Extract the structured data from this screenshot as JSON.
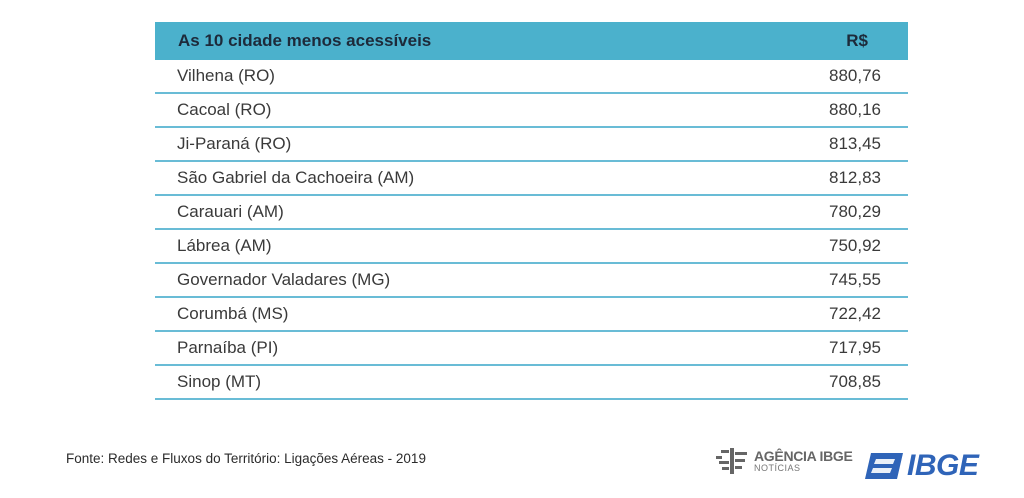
{
  "table": {
    "header": {
      "city": "As 10 cidade menos acessíveis",
      "value": "R$"
    },
    "rows": [
      {
        "city": "Vilhena (RO)",
        "value": "880,76"
      },
      {
        "city": "Cacoal (RO)",
        "value": "880,16"
      },
      {
        "city": "Ji-Paraná (RO)",
        "value": "813,45"
      },
      {
        "city": "São Gabriel da Cachoeira (AM)",
        "value": "812,83"
      },
      {
        "city": "Carauari (AM)",
        "value": "780,29"
      },
      {
        "city": "Lábrea (AM)",
        "value": "750,92"
      },
      {
        "city": "Governador Valadares (MG)",
        "value": "745,55"
      },
      {
        "city": "Corumbá (MS)",
        "value": "722,42"
      },
      {
        "city": "Parnaíba (PI)",
        "value": "717,95"
      },
      {
        "city": "Sinop (MT)",
        "value": "708,85"
      }
    ]
  },
  "footer": {
    "source": "Fonte: Redes e Fluxos do Território: Ligações Aéreas - 2019",
    "agencia_line1": "AGÊNCIA IBGE",
    "agencia_line2": "NOTÍCIAS",
    "ibge_logo": "IBGE"
  },
  "colors": {
    "header_bg": "#4bb1cc",
    "row_border": "#69bcd6",
    "logo_blue": "#2f64b8"
  },
  "chart_data": {
    "type": "table",
    "columns": [
      "As 10 cidade menos acessíveis",
      "R$"
    ],
    "rows": [
      [
        "Vilhena (RO)",
        880.76
      ],
      [
        "Cacoal (RO)",
        880.16
      ],
      [
        "Ji-Paraná (RO)",
        813.45
      ],
      [
        "São Gabriel da Cachoeira (AM)",
        812.83
      ],
      [
        "Carauari (AM)",
        780.29
      ],
      [
        "Lábrea (AM)",
        750.92
      ],
      [
        "Governador Valadares (MG)",
        745.55
      ],
      [
        "Corumbá (MS)",
        722.42
      ],
      [
        "Parnaíba (PI)",
        717.95
      ],
      [
        "Sinop (MT)",
        708.85
      ]
    ]
  }
}
